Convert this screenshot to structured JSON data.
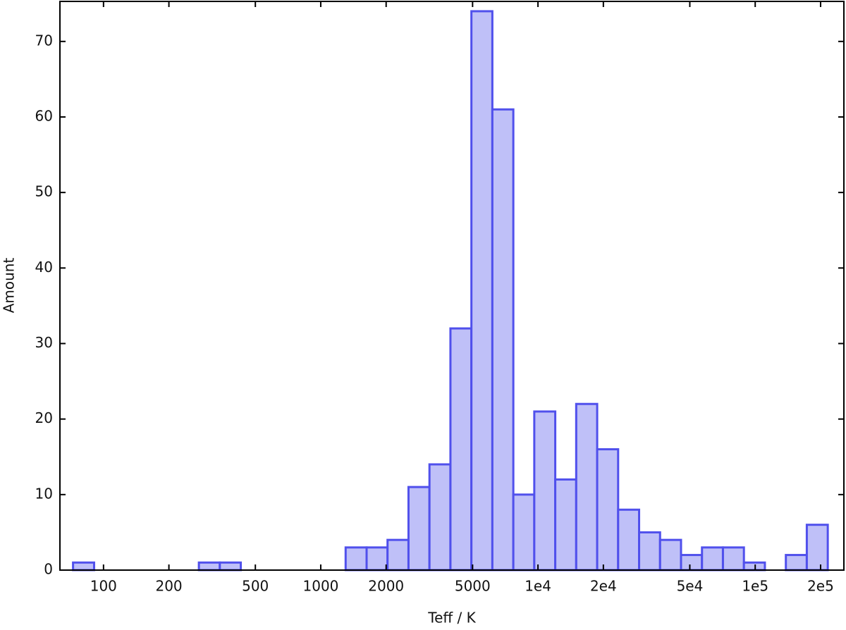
{
  "chart_data": {
    "type": "histogram",
    "x_label": "Teff / K",
    "y_label": "Amount",
    "log_x": true,
    "bins": [
      72.4,
      90.5,
      113.0,
      141.1,
      176.2,
      220.0,
      274.8,
      343.1,
      428.5,
      535.1,
      668.3,
      834.6,
      1042,
      1302,
      1626,
      2030,
      2535,
      3166,
      3954,
      4938,
      6166,
      7701,
      9616,
      12010,
      14997,
      18730,
      23390,
      29210,
      36480,
      45550,
      56890,
      71040,
      88720,
      110800,
      138400,
      172800,
      215800
    ],
    "values": [
      1,
      0,
      0,
      0,
      0,
      0,
      1,
      1,
      0,
      0,
      0,
      0,
      0,
      3,
      3,
      4,
      11,
      14,
      32,
      74,
      61,
      10,
      21,
      12,
      22,
      16,
      8,
      5,
      4,
      2,
      3,
      3,
      1,
      0,
      2,
      6
    ],
    "color": "#bfc0f8",
    "edge_color": "#5050ec",
    "xlim": [
      63,
      256000
    ],
    "xticks": [
      100,
      200,
      500,
      1000,
      2000,
      5000,
      {
        "value": 10000,
        "label": "1e4"
      },
      {
        "value": 20000,
        "label": "2e4"
      },
      {
        "value": 50000,
        "label": "5e4"
      },
      {
        "value": 100000,
        "label": "1e5"
      },
      {
        "value": 200000,
        "label": "2e5"
      }
    ],
    "ylim": [
      0,
      75.3
    ],
    "yticks": [
      0,
      10,
      20,
      30,
      40,
      50,
      60,
      70
    ]
  }
}
